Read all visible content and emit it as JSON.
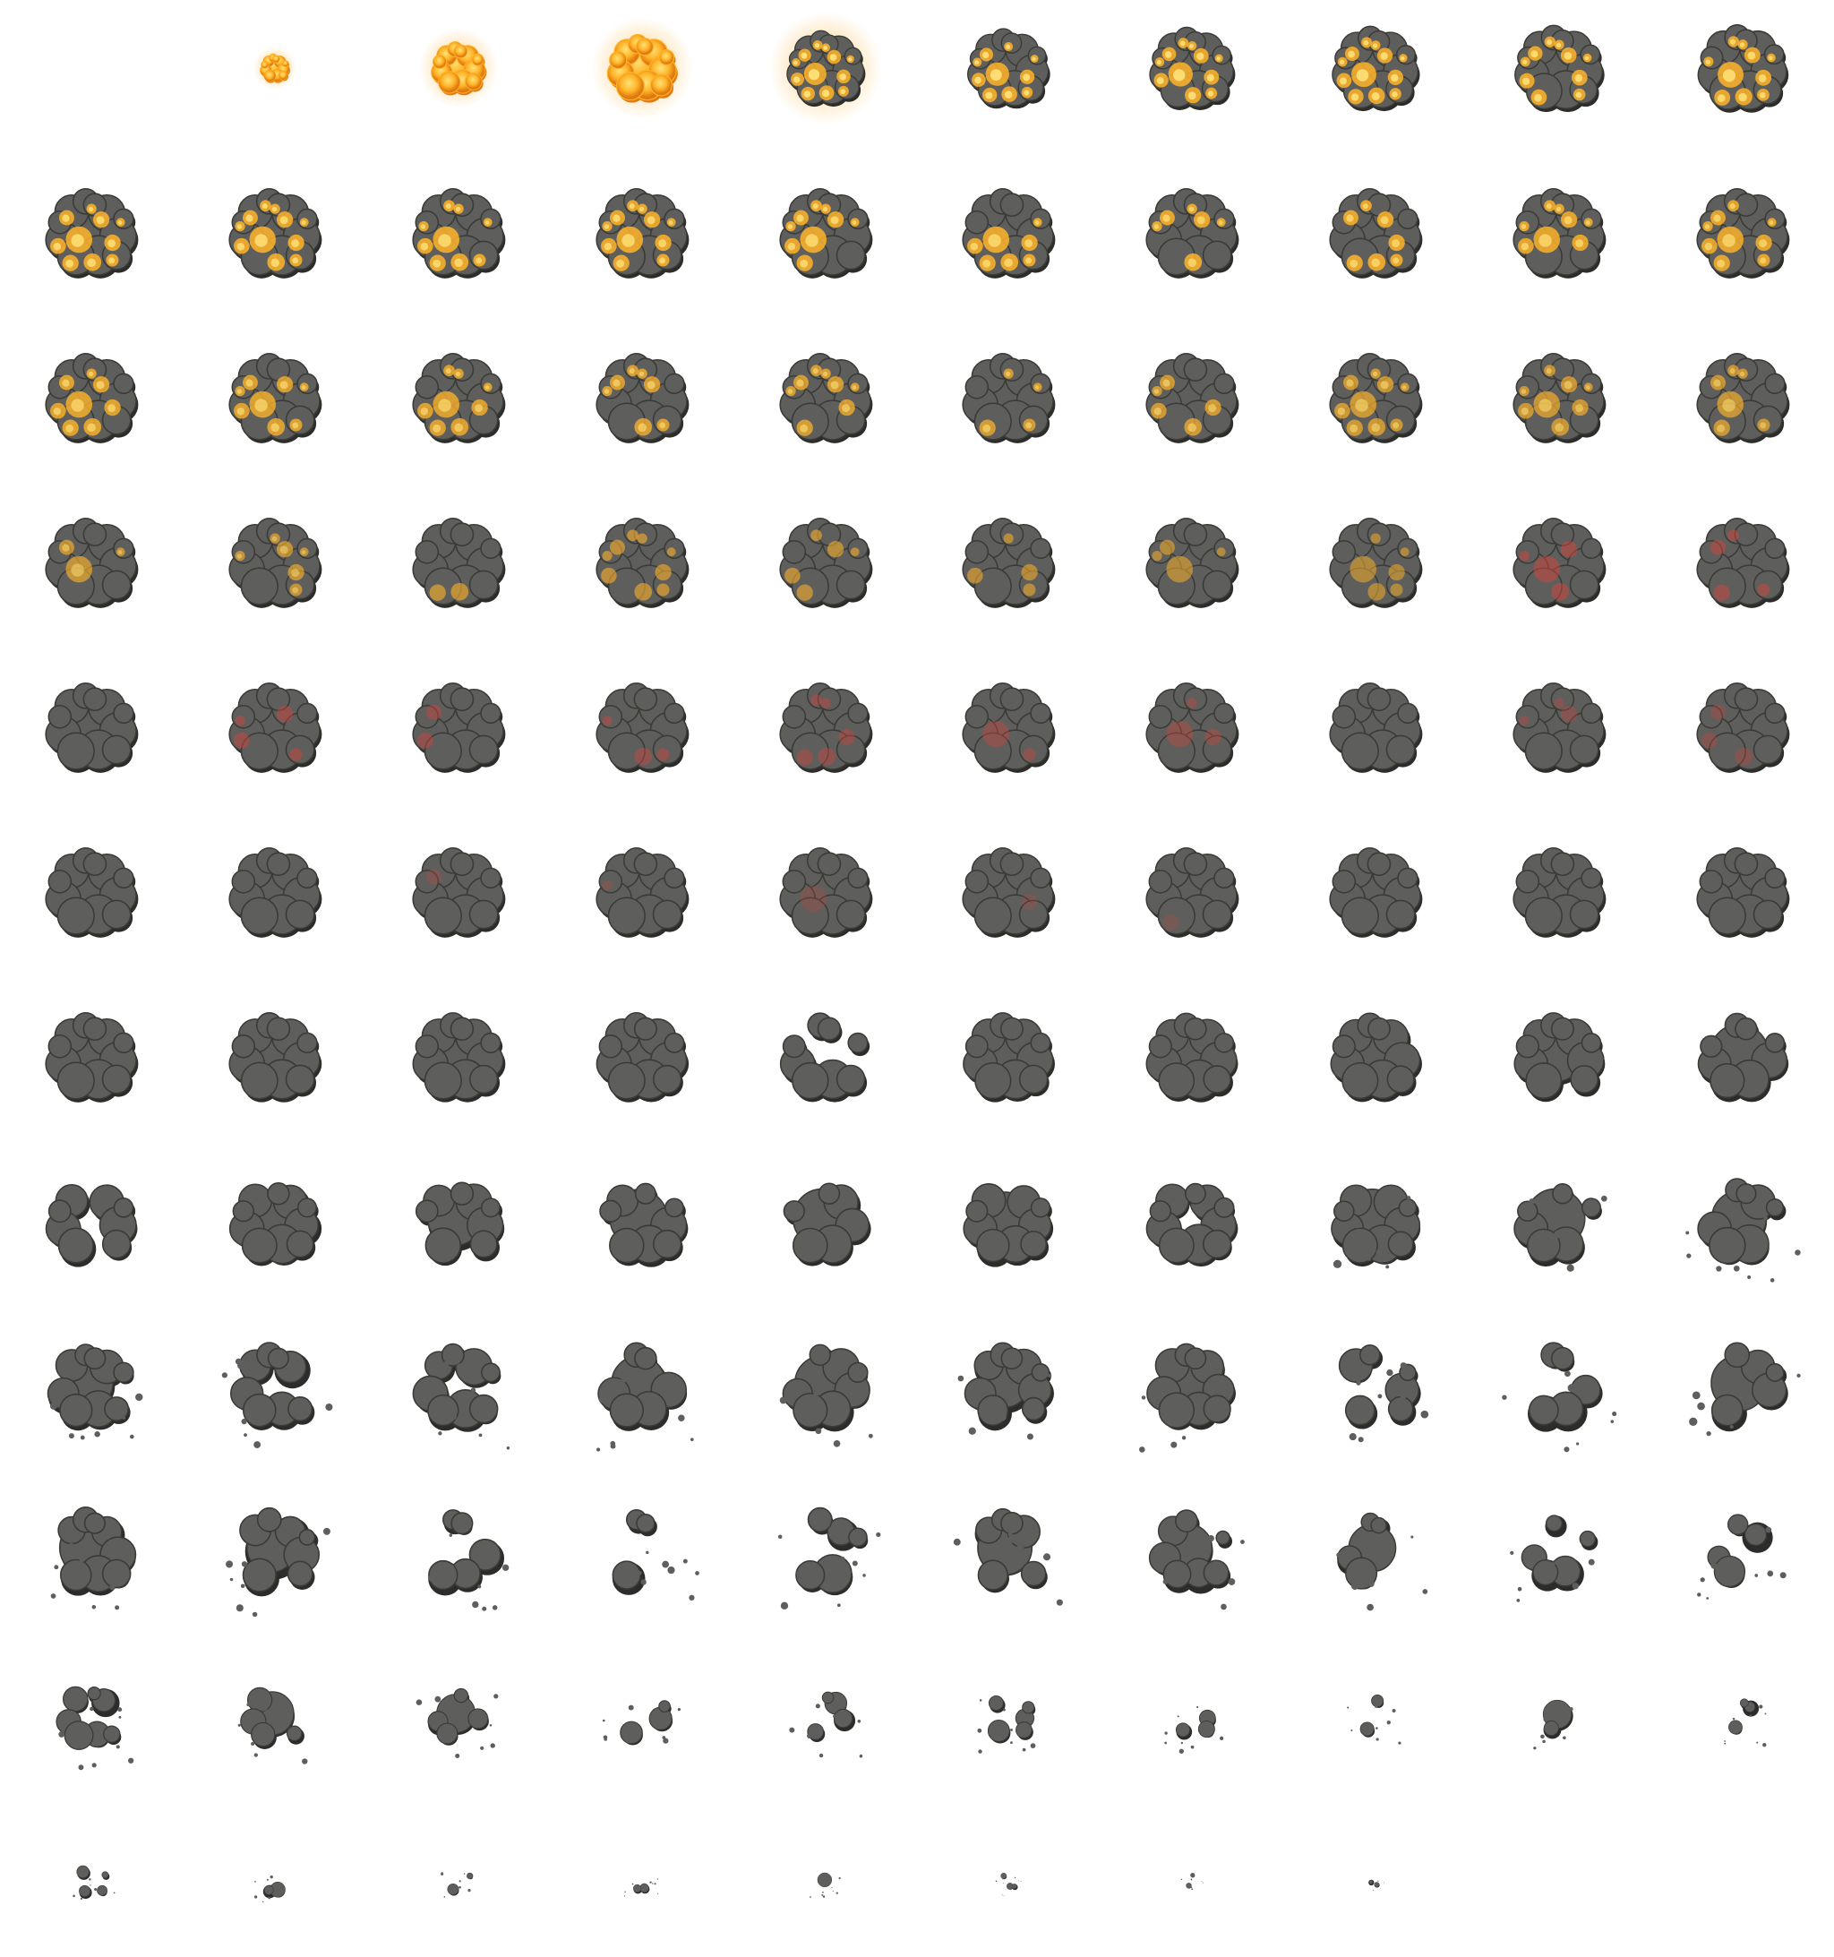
{
  "sprite_sheet": {
    "subject": "explosion",
    "columns": 10,
    "rows": 12,
    "frame_count": 118,
    "background": "#ffffff",
    "colors": {
      "fire_core": "#ffe27a",
      "fire_mid": "#ffb428",
      "fire_edge": "#e07a10",
      "glow": "#ffc870",
      "ember_red": "#d8443a",
      "smoke_body": "#5e5e5c",
      "smoke_highlight": "#6c6d6a",
      "smoke_shadow": "#2c2d2a",
      "smoke_outline": "#3a3b37"
    },
    "frames": [
      {
        "index": 0,
        "phase": "empty",
        "scale": 0,
        "heat": 0,
        "dissolve": 0
      },
      {
        "index": 1,
        "phase": "fireball",
        "scale": 0.3,
        "heat": 1,
        "dissolve": 0
      },
      {
        "index": 2,
        "phase": "fireball",
        "scale": 0.55,
        "heat": 1,
        "dissolve": 0
      },
      {
        "index": 3,
        "phase": "fireball",
        "scale": 0.7,
        "heat": 1,
        "dissolve": 0
      },
      {
        "index": 4,
        "phase": "fire-cloud",
        "scale": 0.78,
        "heat": 0.95,
        "dissolve": 0
      },
      {
        "index": 5,
        "phase": "fire-cloud",
        "scale": 0.82,
        "heat": 0.92,
        "dissolve": 0
      },
      {
        "index": 6,
        "phase": "fire-cloud",
        "scale": 0.85,
        "heat": 0.9,
        "dissolve": 0
      },
      {
        "index": 7,
        "phase": "fire-cloud",
        "scale": 0.87,
        "heat": 0.88,
        "dissolve": 0
      },
      {
        "index": 8,
        "phase": "fire-cloud",
        "scale": 0.89,
        "heat": 0.86,
        "dissolve": 0
      },
      {
        "index": 9,
        "phase": "fire-cloud",
        "scale": 0.9,
        "heat": 0.84,
        "dissolve": 0
      }
    ]
  }
}
